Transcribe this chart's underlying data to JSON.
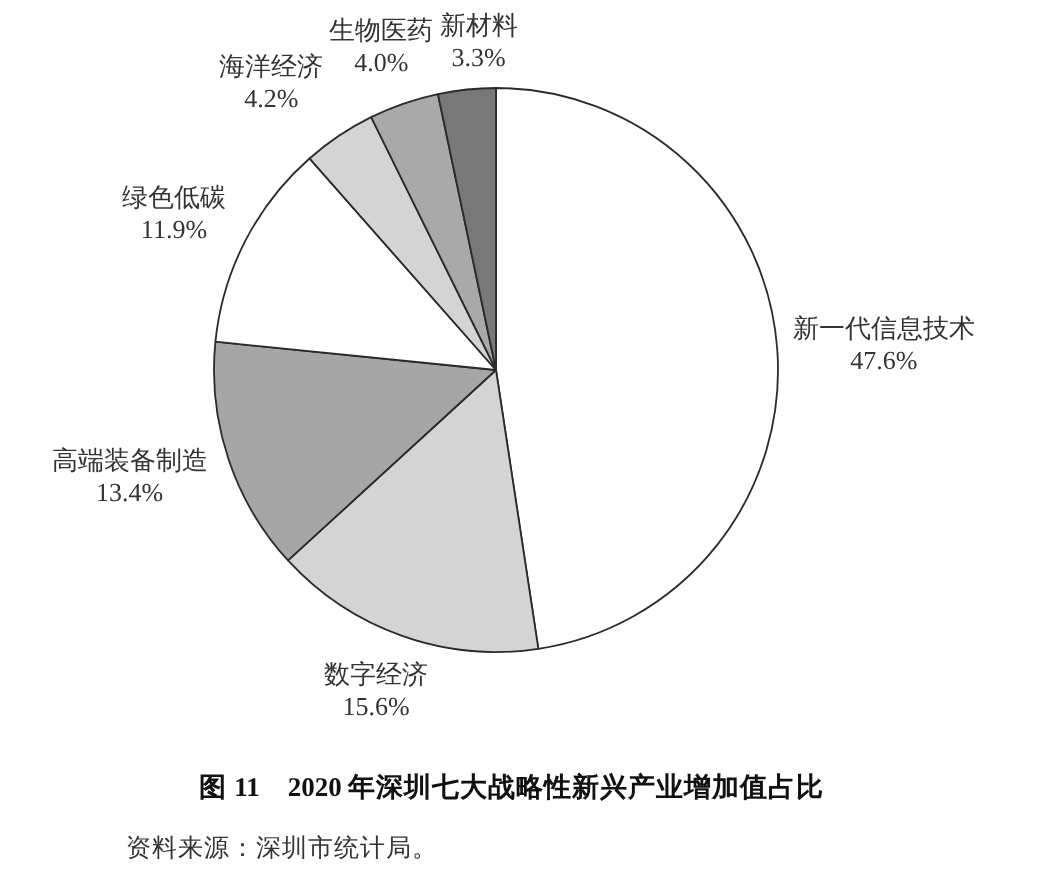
{
  "chart_data": {
    "type": "pie",
    "title": "图 11　2020 年深圳七大战略性新兴产业增加值占比",
    "categories": [
      "新一代信息技术",
      "数字经济",
      "高端装备制造",
      "绿色低碳",
      "海洋经济",
      "生物医药",
      "新材料"
    ],
    "values": [
      47.6,
      15.6,
      13.4,
      11.9,
      4.2,
      4.0,
      3.3
    ],
    "value_labels": [
      "47.6%",
      "15.6%",
      "13.4%",
      "11.9%",
      "4.2%",
      "4.0%",
      "3.3%"
    ],
    "colors": [
      "#ffffff",
      "#d4d4d4",
      "#a6a6a6",
      "#ffffff",
      "#d4d4d4",
      "#a9a9a9",
      "#787878"
    ],
    "annotations": [
      "资料来源：深圳市统计局。"
    ]
  }
}
